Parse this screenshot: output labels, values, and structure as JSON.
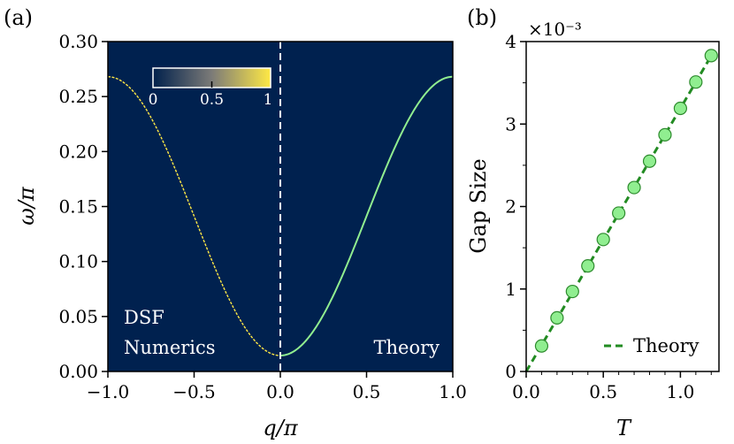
{
  "chart_data": [
    {
      "panel_label": "(a)",
      "type": "heatmap",
      "xlabel": "q/π",
      "ylabel": "ω/π",
      "xlim": [
        -1.0,
        1.0
      ],
      "ylim": [
        0.0,
        0.3
      ],
      "xticks": [
        "−1.0",
        "−0.5",
        "0.0",
        "0.5",
        "1.0"
      ],
      "yticks": [
        "0.00",
        "0.05",
        "0.10",
        "0.15",
        "0.20",
        "0.25",
        "0.30"
      ],
      "background_color": "#00214f",
      "colorbar": {
        "ticks": [
          "0",
          "0.5",
          "1"
        ],
        "range": [
          0,
          1
        ],
        "colors": [
          "#00204c",
          "#7c7b78",
          "#ffe945"
        ]
      },
      "annotations": {
        "left_line1": "DSF",
        "left_line2": "Numerics",
        "right": "Theory"
      },
      "dispersion": {
        "max": 0.268,
        "gap": 0.0145,
        "form": "cosine band, minimum at q=0"
      },
      "numerics_color": "#ffe945",
      "theory_color": "#90ee90",
      "divider": {
        "x": 0.0,
        "style": "dashed",
        "color": "#ffffff"
      }
    },
    {
      "panel_label": "(b)",
      "type": "scatter",
      "xlabel": "T",
      "ylabel": "Gap Size",
      "xlim": [
        0.0,
        1.25
      ],
      "ylim": [
        0.0,
        4.0
      ],
      "xticks": [
        "0.0",
        "0.5",
        "1.0"
      ],
      "yticks": [
        "0",
        "1",
        "2",
        "3",
        "4"
      ],
      "scale_label": "×10⁻³",
      "x": [
        0.1,
        0.2,
        0.3,
        0.4,
        0.5,
        0.6,
        0.7,
        0.8,
        0.9,
        1.0,
        1.1,
        1.2
      ],
      "y": [
        0.31,
        0.65,
        0.97,
        1.28,
        1.6,
        1.92,
        2.23,
        2.55,
        2.87,
        3.19,
        3.51,
        3.83
      ],
      "marker_color": "#90ee90",
      "marker_edge": "#2e8b2e",
      "theory_line": {
        "slope": 3.19,
        "intercept": 0.0,
        "color": "#228b22",
        "style": "dashed"
      },
      "legend": {
        "label": "Theory",
        "placement": "bottom-right"
      }
    }
  ]
}
